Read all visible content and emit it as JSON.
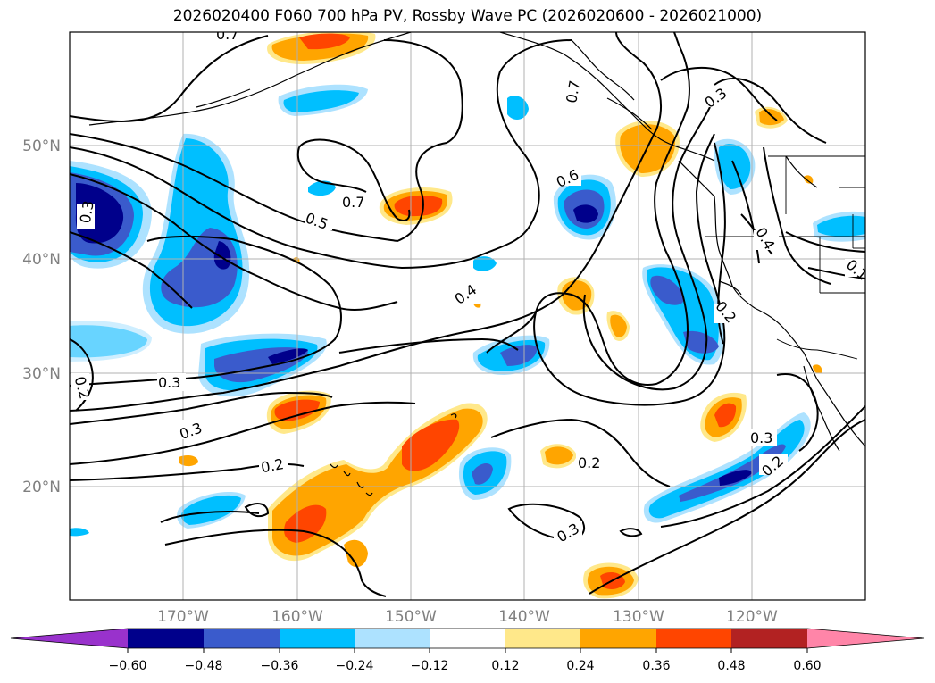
{
  "title": "2026020400 F060 700 hPa PV, Rossby Wave PC (2026020600 - 2026021000)",
  "colors": {
    "n_ext": "#9932cc",
    "n060": "#00008b",
    "n048": "#3a5bcc",
    "n036": "#00bfff",
    "n024": "#ade2ff",
    "zero": "#ffffff",
    "p012": "#ffe88a",
    "p024": "#ffa500",
    "p036": "#ff4500",
    "p048": "#b22222",
    "p_ext": "#ff85a8"
  },
  "map": {
    "lon_min": -180,
    "lon_max": -110,
    "lat_min": 10,
    "lat_max": 60,
    "lat_ticks": [
      {
        "value": 50,
        "label": "50°N"
      },
      {
        "value": 40,
        "label": "40°N"
      },
      {
        "value": 30,
        "label": "30°N"
      },
      {
        "value": 20,
        "label": "20°N"
      }
    ],
    "lon_ticks": [
      {
        "value": -170,
        "label": "170°W"
      },
      {
        "value": -160,
        "label": "160°W"
      },
      {
        "value": -150,
        "label": "150°W"
      },
      {
        "value": -140,
        "label": "140°W"
      },
      {
        "value": -130,
        "label": "130°W"
      },
      {
        "value": -120,
        "label": "120°W"
      }
    ]
  },
  "contour_labels": [
    "0.7",
    "0.3",
    "0.7",
    "0.5",
    "0.4",
    "0.6",
    "0.3",
    "0.4",
    "0.2",
    "0.3",
    "0.3",
    "0.2",
    "0.2",
    "0.3",
    "0.2",
    "0.3",
    "0.2",
    "0.7",
    "0.1"
  ],
  "colorbar": {
    "ticks": [
      "−0.60",
      "−0.48",
      "−0.36",
      "−0.24",
      "−0.12",
      "0.12",
      "0.24",
      "0.36",
      "0.48",
      "0.60"
    ]
  }
}
